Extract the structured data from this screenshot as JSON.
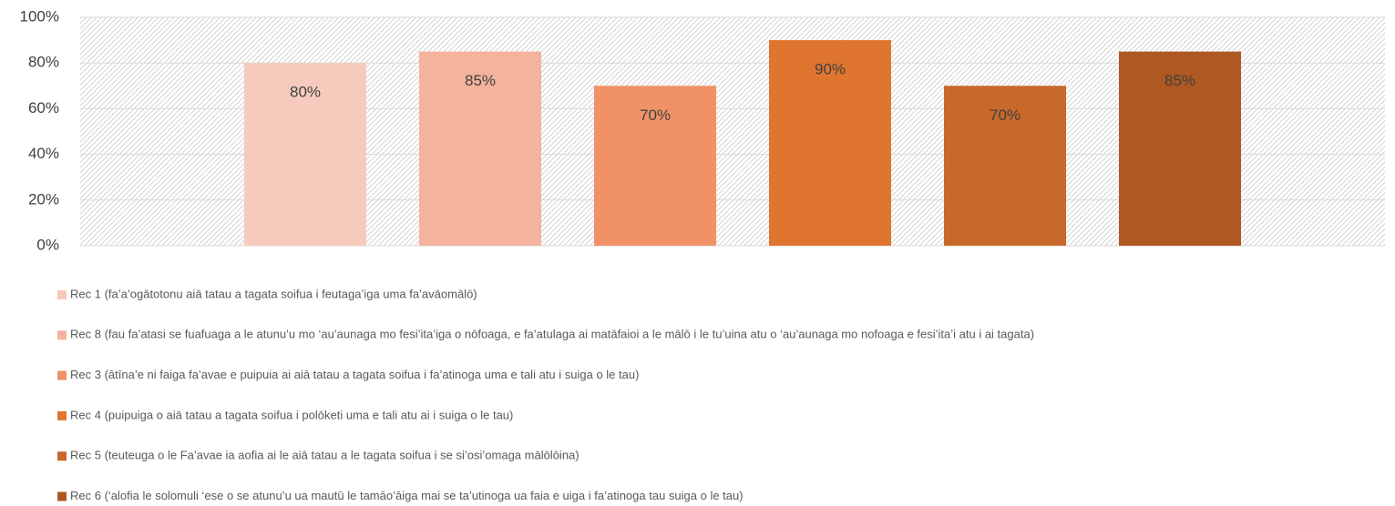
{
  "chart_data": {
    "type": "bar",
    "categories": [
      null
    ],
    "series": [
      {
        "name": "Rec 1 (fa’a’ogātotonu aiā tatau a tagata soifua i feutaga’iga uma fa’avāomālō)",
        "color": "#f6cbbd",
        "values": [
          80
        ],
        "value_labels": [
          "80%"
        ]
      },
      {
        "name": "Rec 8 (fau fa’atasi se fuafuaga a le atunu’u mo ‘au’aunaga mo fesi’ita’iga o nōfoaga, e fa’atulaga ai matāfaioi a le mālō i le tu’uina atu o ‘au’aunaga mo nofoaga e fesi’ita’i atu i ai tagata)",
        "color": "#f3b39c",
        "values": [
          85
        ],
        "value_labels": [
          "85%"
        ]
      },
      {
        "name": "Rec 3 (ātīna’e ni faiga fa’avae e puipuia ai aiā tatau a tagata soifua i fa’atinoga uma e tali atu i suiga o le tau)",
        "color": "#f09266",
        "values": [
          70
        ],
        "value_labels": [
          "70%"
        ]
      },
      {
        "name": "Rec 4 (puipuiga o aiā tatau a tagata soifua i polōketi uma e tali atu ai i suiga o le tau)",
        "color": "#e07530",
        "values": [
          90
        ],
        "value_labels": [
          "90%"
        ]
      },
      {
        "name": "Rec 5 (teuteuga o le Fa’avae ia aofia ai le aiā tatau a le tagata soifua i se si’osi’omaga mālōlōina)",
        "color": "#c8682a",
        "values": [
          70
        ],
        "value_labels": [
          "70%"
        ]
      },
      {
        "name": "Rec 6 (‘alofia le solomuli ‘ese o se atunu’u ua mautū le tamāo’āiga mai se ta’utinoga ua faia e uiga i fa’atinoga tau suiga o le tau)",
        "color": "#ae5822",
        "values": [
          85
        ],
        "value_labels": [
          "85%"
        ]
      }
    ],
    "ylim": [
      0,
      100
    ],
    "yticks": [
      {
        "value": 0,
        "label": "0%"
      },
      {
        "value": 20,
        "label": "20%"
      },
      {
        "value": 40,
        "label": "40%"
      },
      {
        "value": 60,
        "label": "60%"
      },
      {
        "value": 80,
        "label": "80%"
      },
      {
        "value": 100,
        "label": "100%"
      }
    ],
    "grid": true,
    "legend": "bottom"
  }
}
